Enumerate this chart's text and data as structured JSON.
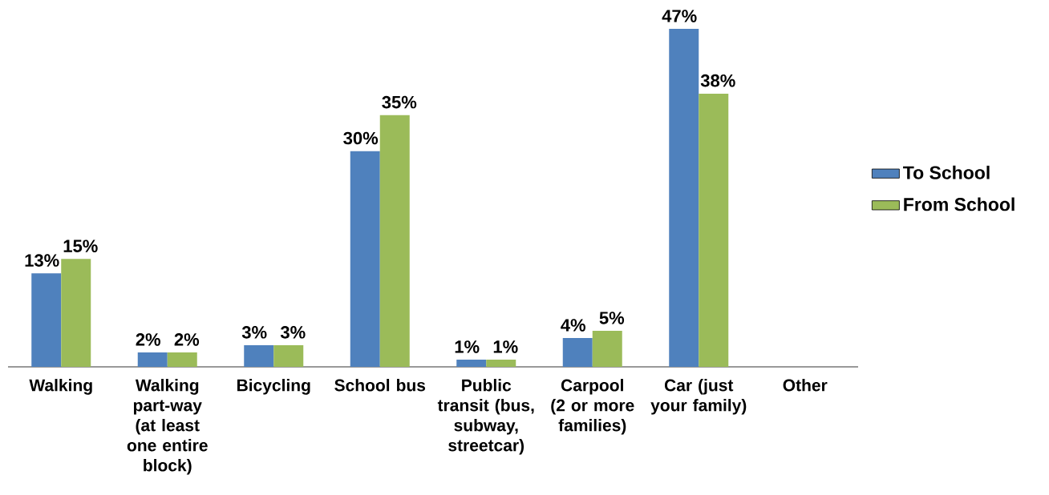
{
  "chart_data": {
    "type": "bar",
    "categories": [
      "Walking",
      "Walking part-way (at least one entire block)",
      "Bicycling",
      "School bus",
      "Public transit (bus, subway, streetcar)",
      "Carpool (2 or more families)",
      "Car (just your family)",
      "Other"
    ],
    "series": [
      {
        "name": "To School",
        "color": "#4f81bd",
        "values": [
          13,
          2,
          3,
          30,
          1,
          4,
          47,
          null
        ],
        "value_labels": [
          "13%",
          "2%",
          "3%",
          "30%",
          "1%",
          "4%",
          "47%",
          null
        ]
      },
      {
        "name": "From School",
        "color": "#9bbb59",
        "values": [
          15,
          2,
          3,
          35,
          1,
          5,
          38,
          null
        ],
        "value_labels": [
          "15%",
          "2%",
          "3%",
          "35%",
          "1%",
          "5%",
          "38%",
          null
        ]
      }
    ],
    "legend": "right"
  }
}
